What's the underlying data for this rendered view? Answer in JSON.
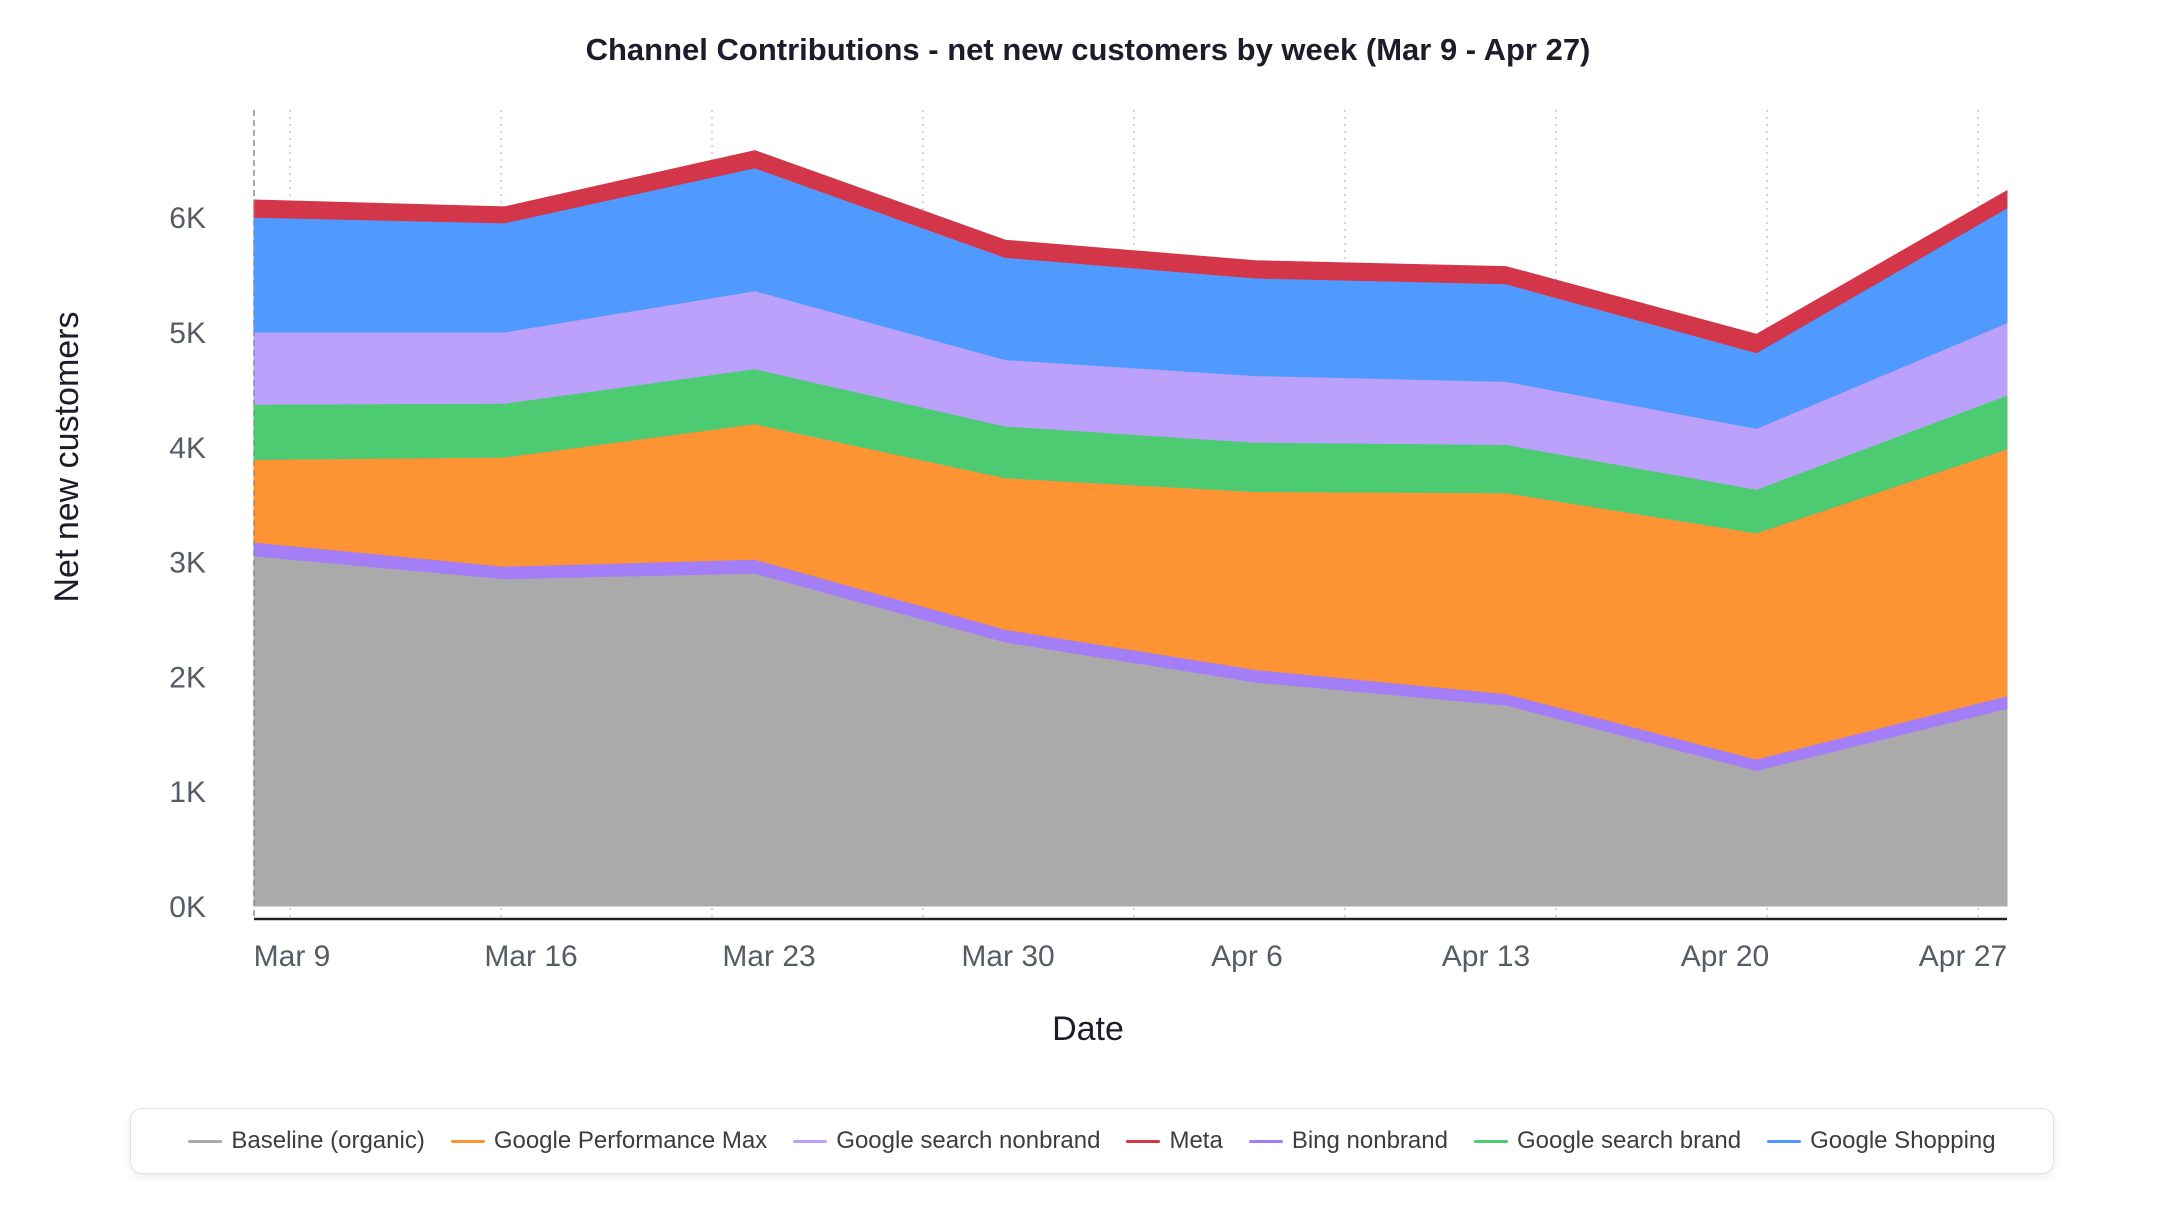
{
  "chart_data": {
    "type": "area",
    "stacked": true,
    "title": "Channel Contributions - net new customers by week (Mar 9 - Apr 27)",
    "xlabel": "Date",
    "ylabel": "Net new customers",
    "categories": [
      "Mar 9",
      "Mar 16",
      "Mar 23",
      "Mar 30",
      "Apr 6",
      "Apr 13",
      "Apr 20",
      "Apr 27"
    ],
    "y_ticks": [
      "0K",
      "1K",
      "2K",
      "3K",
      "4K",
      "5K",
      "6K"
    ],
    "ylim": [
      0,
      7000
    ],
    "grid": "vertical dotted",
    "legend_position": "bottom",
    "series": [
      {
        "name": "Baseline (organic)",
        "color": "#aaaaaa",
        "values": [
          3050,
          2850,
          2900,
          2300,
          1950,
          1750,
          1180,
          1720
        ]
      },
      {
        "name": "Bing nonbrand",
        "color": "#a37ef7",
        "values": [
          120,
          110,
          120,
          110,
          110,
          100,
          100,
          110
        ]
      },
      {
        "name": "Google Performance Max",
        "color": "#fd9332",
        "values": [
          720,
          950,
          1180,
          1320,
          1550,
          1750,
          1970,
          2150
        ]
      },
      {
        "name": "Google search brand",
        "color": "#4ccb72",
        "values": [
          480,
          470,
          480,
          450,
          430,
          420,
          380,
          470
        ]
      },
      {
        "name": "Google search nonbrand",
        "color": "#bba1fc",
        "values": [
          630,
          620,
          680,
          580,
          580,
          550,
          530,
          630
        ]
      },
      {
        "name": "Google Shopping",
        "color": "#509aff",
        "values": [
          1000,
          950,
          1070,
          890,
          850,
          850,
          660,
          1000
        ]
      },
      {
        "name": "Meta",
        "color": "#d33649",
        "values": [
          150,
          140,
          150,
          150,
          150,
          150,
          160,
          150
        ]
      }
    ],
    "legend_order": [
      "Baseline (organic)",
      "Google Performance Max",
      "Google search nonbrand",
      "Meta",
      "Bing nonbrand",
      "Google search brand",
      "Google Shopping"
    ]
  }
}
